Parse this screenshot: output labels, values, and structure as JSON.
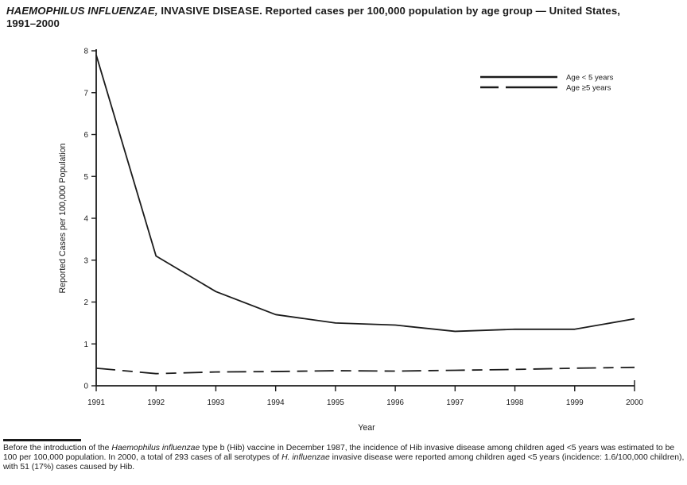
{
  "title": {
    "italic": "HAEMOPHILUS INFLUENZAE,",
    "rest": " INVASIVE DISEASE. Reported cases per 100,000 population by age group — United States,",
    "line2": "1991–2000"
  },
  "chart_data": {
    "type": "line",
    "title": "HAEMOPHILUS INFLUENZAE, INVASIVE DISEASE. Reported cases per 100,000 population by age group — United States, 1991–2000",
    "x": [
      1991,
      1992,
      1993,
      1994,
      1995,
      1996,
      1997,
      1998,
      1999,
      2000
    ],
    "series": [
      {
        "name": "Age < 5 years",
        "style": "solid",
        "values": [
          7.9,
          3.1,
          2.25,
          1.7,
          1.5,
          1.45,
          1.3,
          1.35,
          1.35,
          1.6
        ]
      },
      {
        "name": "Age ≥5 years",
        "style": "dashed",
        "values": [
          0.42,
          0.29,
          0.33,
          0.34,
          0.36,
          0.35,
          0.37,
          0.39,
          0.42,
          0.44
        ]
      }
    ],
    "xlabel": "Year",
    "ylabel": "Reported Cases per 100,000 Population",
    "ylim": [
      0,
      8
    ],
    "yticks": [
      0,
      1,
      2,
      3,
      4,
      5,
      6,
      7,
      8
    ],
    "grid": false,
    "legend_position": "top-right",
    "line_color": "#1b1b1b"
  },
  "footnote": {
    "parts": [
      {
        "text": "Before the introduction of the ",
        "italic": false
      },
      {
        "text": "Haemophilus influenzae",
        "italic": true
      },
      {
        "text": " type b (Hib) vaccine in December 1987, the incidence of Hib invasive disease among children aged <5 years was estimated to be 100 per 100,000 population. In 2000, a total of 293 cases of all serotypes of ",
        "italic": false
      },
      {
        "text": "H. influenzae",
        "italic": true
      },
      {
        "text": " invasive disease were reported among children aged <5 years (incidence: 1.6/100,000 children), with 51 (17%) cases caused by Hib.",
        "italic": false
      }
    ]
  }
}
